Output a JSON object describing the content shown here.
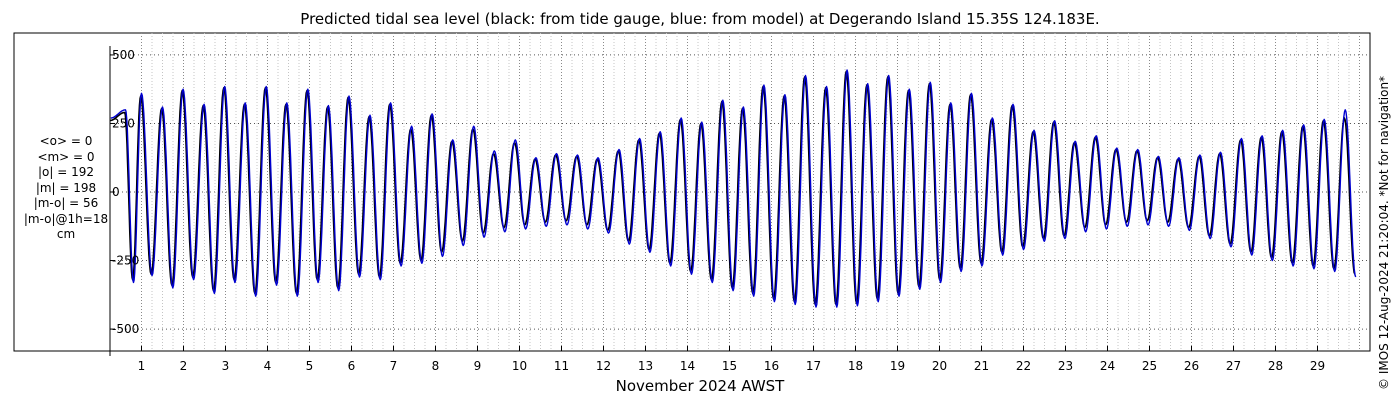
{
  "title": "Predicted tidal sea level (black: from tide gauge, blue: from model) at Degerando Island 15.35S 124.183E.",
  "xlabel": "November 2024 AWST",
  "copyright": "© IMOS 12-Aug-2024 21:20:04. *Not for navigation*",
  "stats": [
    "<o> = 0",
    "<m> = 0",
    "|o| = 192",
    "|m| = 198",
    "|m-o| = 56",
    "|m-o|@1h=18",
    "cm"
  ],
  "colors": {
    "observed": "#000000",
    "model": "#0000d0",
    "grid": "#9a9a9a"
  },
  "chart_data": {
    "type": "line",
    "title": "Predicted tidal sea level (black: from tide gauge, blue: from model) at Degerando Island 15.35S 124.183E.",
    "xlabel": "November 2024 AWST",
    "ylabel": "",
    "units": "cm",
    "xlim": [
      0.25,
      30.25
    ],
    "ylim": [
      -580,
      580
    ],
    "yticks": [
      -500,
      -250,
      0,
      250,
      500
    ],
    "ytick_labels": [
      "-500",
      "-250",
      "0",
      "250",
      "500"
    ],
    "xticks": [
      1,
      2,
      3,
      4,
      5,
      6,
      7,
      8,
      9,
      10,
      11,
      12,
      13,
      14,
      15,
      16,
      17,
      18,
      19,
      20,
      21,
      22,
      23,
      24,
      25,
      26,
      27,
      28,
      29
    ],
    "xtick_labels": [
      "1",
      "2",
      "3",
      "4",
      "5",
      "6",
      "7",
      "8",
      "9",
      "10",
      "11",
      "12",
      "13",
      "14",
      "15",
      "16",
      "17",
      "18",
      "19",
      "20",
      "21",
      "22",
      "23",
      "24",
      "25",
      "26",
      "27",
      "28",
      "29"
    ],
    "grid": true,
    "series": [
      {
        "name": "black: from tide gauge",
        "color": "#000000",
        "x": [
          0.6,
          0.98,
          1.48,
          1.97,
          2.47,
          2.96,
          3.45,
          3.95,
          4.44,
          4.94,
          5.43,
          5.92,
          6.42,
          6.91,
          7.41,
          7.9,
          8.39,
          8.89,
          9.38,
          9.88,
          10.37,
          10.86,
          11.36,
          11.85,
          12.35,
          12.84,
          13.33,
          13.83,
          14.32,
          14.82,
          15.31,
          15.8,
          16.3,
          16.79,
          17.29,
          17.78,
          18.27,
          18.77,
          19.26,
          19.76,
          20.25,
          20.74,
          21.24,
          21.73,
          22.23,
          22.72,
          23.21,
          23.71,
          24.2,
          24.7,
          25.19,
          25.68,
          26.18,
          26.67,
          27.17,
          27.66,
          28.15,
          28.65,
          29.14,
          29.64
        ],
        "high": [
          290,
          350,
          305,
          370,
          315,
          380,
          320,
          380,
          320,
          370,
          310,
          345,
          275,
          320,
          230,
          280,
          185,
          230,
          140,
          180,
          120,
          135,
          130,
          120,
          150,
          190,
          215,
          265,
          250,
          330,
          305,
          385,
          350,
          420,
          380,
          440,
          390,
          420,
          370,
          395,
          320,
          355,
          265,
          315,
          220,
          255,
          180,
          200,
          155,
          150,
          125,
          120,
          130,
          140,
          190,
          200,
          220,
          240,
          260,
          270
        ],
        "low": [
          -320,
          -300,
          -340,
          -310,
          -360,
          -320,
          -370,
          -330,
          -370,
          -320,
          -350,
          -300,
          -310,
          -260,
          -250,
          -220,
          -180,
          -150,
          -130,
          -120,
          -110,
          -105,
          -120,
          -140,
          -180,
          -210,
          -260,
          -290,
          -320,
          -350,
          -370,
          -390,
          -400,
          -410,
          -410,
          -405,
          -390,
          -370,
          -345,
          -320,
          -280,
          -260,
          -220,
          -200,
          -170,
          -160,
          -130,
          -120,
          -110,
          -105,
          -110,
          -130,
          -160,
          -190,
          -220,
          -240,
          -260,
          -270,
          -280,
          -300
        ]
      },
      {
        "name": "blue: from model",
        "color": "#0000d0",
        "x": [
          0.6,
          0.98,
          1.48,
          1.97,
          2.47,
          2.96,
          3.45,
          3.95,
          4.44,
          4.94,
          5.43,
          5.92,
          6.42,
          6.91,
          7.41,
          7.9,
          8.39,
          8.89,
          9.38,
          9.88,
          10.37,
          10.86,
          11.36,
          11.85,
          12.35,
          12.84,
          13.33,
          13.83,
          14.32,
          14.82,
          15.31,
          15.8,
          16.3,
          16.79,
          17.29,
          17.78,
          18.27,
          18.77,
          19.26,
          19.76,
          20.25,
          20.74,
          21.24,
          21.73,
          22.23,
          22.72,
          23.21,
          23.71,
          24.2,
          24.7,
          25.19,
          25.68,
          26.18,
          26.67,
          27.17,
          27.66,
          28.15,
          28.65,
          29.14,
          29.64
        ],
        "high": [
          300,
          360,
          310,
          375,
          320,
          385,
          325,
          385,
          325,
          375,
          315,
          350,
          280,
          325,
          240,
          285,
          190,
          240,
          150,
          190,
          125,
          140,
          135,
          125,
          155,
          195,
          220,
          270,
          255,
          335,
          310,
          390,
          355,
          425,
          385,
          445,
          395,
          425,
          375,
          400,
          325,
          360,
          270,
          320,
          225,
          260,
          185,
          205,
          160,
          155,
          130,
          125,
          135,
          145,
          195,
          205,
          225,
          245,
          265,
          300
        ],
        "low": [
          -330,
          -305,
          -350,
          -320,
          -370,
          -330,
          -380,
          -340,
          -380,
          -330,
          -360,
          -310,
          -320,
          -270,
          -260,
          -235,
          -195,
          -165,
          -145,
          -135,
          -125,
          -120,
          -135,
          -150,
          -190,
          -220,
          -270,
          -300,
          -330,
          -360,
          -380,
          -400,
          -410,
          -420,
          -420,
          -415,
          -400,
          -380,
          -355,
          -330,
          -290,
          -270,
          -230,
          -210,
          -180,
          -170,
          -145,
          -135,
          -125,
          -120,
          -125,
          -140,
          -170,
          -200,
          -230,
          -250,
          -270,
          -280,
          -290,
          -310
        ]
      }
    ]
  }
}
